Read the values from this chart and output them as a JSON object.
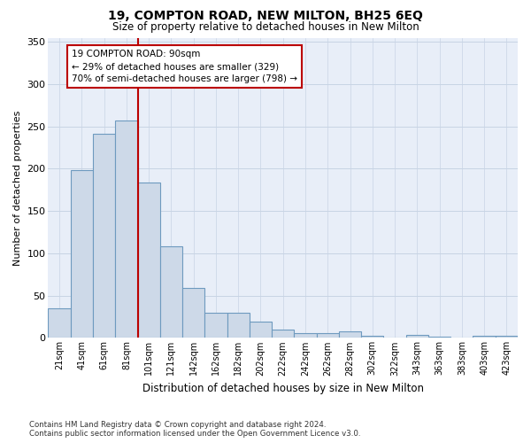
{
  "title1": "19, COMPTON ROAD, NEW MILTON, BH25 6EQ",
  "title2": "Size of property relative to detached houses in New Milton",
  "xlabel": "Distribution of detached houses by size in New Milton",
  "ylabel": "Number of detached properties",
  "categories": [
    "21sqm",
    "41sqm",
    "61sqm",
    "81sqm",
    "101sqm",
    "121sqm",
    "142sqm",
    "162sqm",
    "182sqm",
    "202sqm",
    "222sqm",
    "242sqm",
    "262sqm",
    "282sqm",
    "302sqm",
    "322sqm",
    "343sqm",
    "363sqm",
    "383sqm",
    "403sqm",
    "423sqm"
  ],
  "values": [
    35,
    198,
    241,
    257,
    184,
    108,
    59,
    30,
    30,
    19,
    10,
    6,
    6,
    8,
    3,
    0,
    4,
    1,
    0,
    2,
    2
  ],
  "bar_color": "#cdd9e8",
  "bar_edgecolor": "#6e9abf",
  "grid_color": "#c8d4e4",
  "background_color": "#e8eef8",
  "vline_x": 3.5,
  "vline_color": "#bb0000",
  "annotation_title": "19 COMPTON ROAD: 90sqm",
  "annotation_line2": "← 29% of detached houses are smaller (329)",
  "annotation_line3": "70% of semi-detached houses are larger (798) →",
  "annotation_box_edgecolor": "#bb0000",
  "footer1": "Contains HM Land Registry data © Crown copyright and database right 2024.",
  "footer2": "Contains public sector information licensed under the Open Government Licence v3.0.",
  "ylim_max": 355,
  "yticks": [
    0,
    50,
    100,
    150,
    200,
    250,
    300,
    350
  ]
}
